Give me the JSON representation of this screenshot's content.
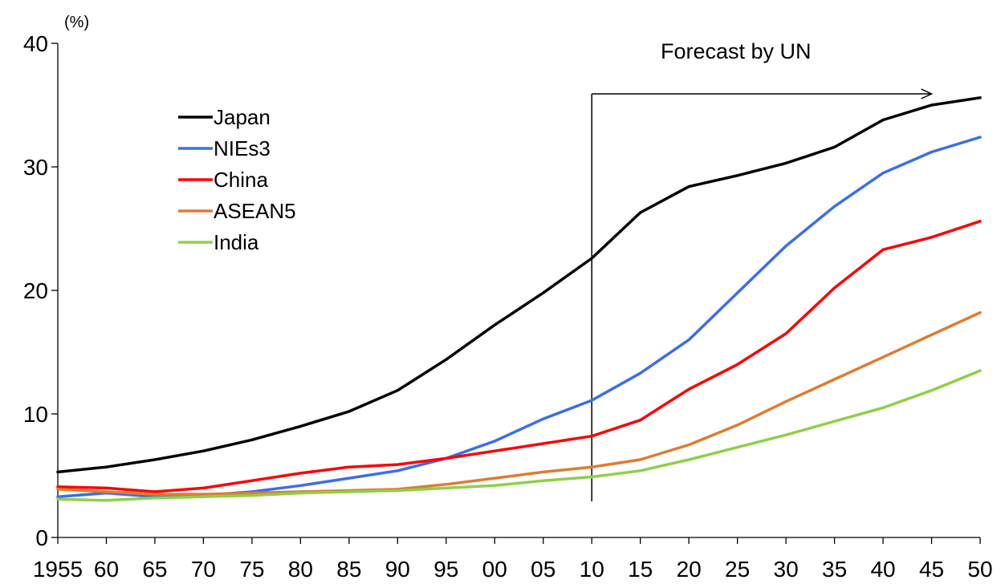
{
  "chart_data": {
    "type": "line",
    "title": "",
    "xlabel": "",
    "ylabel": "",
    "y_unit": "(%)",
    "ylim": [
      0,
      40
    ],
    "y_ticks": [
      0,
      10,
      20,
      30,
      40
    ],
    "grid": false,
    "legend_placement": "top-left",
    "categories": [
      "1955",
      "60",
      "65",
      "70",
      "75",
      "80",
      "85",
      "90",
      "95",
      "00",
      "05",
      "10",
      "15",
      "20",
      "25",
      "30",
      "35",
      "40",
      "45",
      "50"
    ],
    "series": [
      {
        "name": "Japan",
        "color": "#000000",
        "values": [
          5.3,
          5.7,
          6.3,
          7.0,
          7.9,
          9.0,
          10.2,
          11.9,
          14.4,
          17.2,
          19.8,
          22.6,
          26.3,
          28.4,
          29.3,
          30.3,
          31.6,
          33.8,
          35.0,
          35.6
        ]
      },
      {
        "name": "NIEs3",
        "color": "#3c6ee6",
        "values": [
          3.3,
          3.6,
          3.3,
          3.4,
          3.7,
          4.2,
          4.8,
          5.4,
          6.4,
          7.8,
          9.6,
          11.1,
          13.3,
          16.0,
          19.8,
          23.6,
          26.8,
          29.5,
          31.2,
          32.4
        ]
      },
      {
        "name": "China",
        "color": "#ff0000",
        "values": [
          4.1,
          4.0,
          3.7,
          4.0,
          4.6,
          5.2,
          5.7,
          5.9,
          6.4,
          7.0,
          7.6,
          8.2,
          9.5,
          12.0,
          14.0,
          16.5,
          20.2,
          23.3,
          24.3,
          25.6
        ]
      },
      {
        "name": "ASEAN5",
        "color": "#e07b32",
        "values": [
          3.9,
          3.7,
          3.5,
          3.5,
          3.6,
          3.7,
          3.8,
          3.9,
          4.3,
          4.8,
          5.3,
          5.7,
          6.3,
          7.5,
          9.1,
          11.0,
          12.8,
          14.6,
          16.4,
          18.2
        ]
      },
      {
        "name": "India",
        "color": "#8ed04a",
        "values": [
          3.1,
          3.0,
          3.2,
          3.3,
          3.4,
          3.6,
          3.7,
          3.8,
          4.0,
          4.2,
          4.6,
          4.9,
          5.4,
          6.3,
          7.3,
          8.3,
          9.4,
          10.5,
          11.9,
          13.5
        ]
      }
    ],
    "annotation": {
      "text": "Forecast by UN",
      "start_category": "10",
      "arrow_end_category": "45"
    }
  }
}
